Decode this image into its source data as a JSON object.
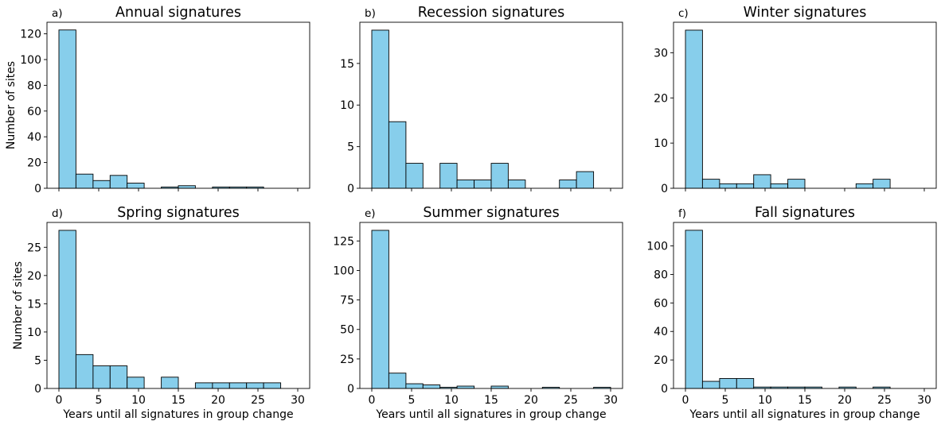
{
  "style": {
    "bar_color": "#87ceeb",
    "edge_color": "#000000"
  },
  "chart_data": [
    {
      "type": "bar",
      "panel_label": "a)",
      "title": "Annual signatures",
      "xlabel": "",
      "ylabel": "Number of sites",
      "xlim": [
        -1.5,
        31.5
      ],
      "ylim": [
        0,
        129
      ],
      "xticks": [
        0,
        5,
        10,
        15,
        20,
        25,
        30
      ],
      "yticks": [
        0,
        20,
        40,
        60,
        80,
        100,
        120
      ],
      "show_xtick_labels": false,
      "bin_edges": [
        0,
        2.14,
        4.29,
        6.43,
        8.57,
        10.71,
        12.86,
        15,
        17.14,
        19.29,
        21.43,
        23.57,
        25.71,
        27.86,
        30
      ],
      "values": [
        123,
        11,
        6,
        10,
        4,
        0,
        1,
        2,
        0,
        1,
        1,
        1,
        0,
        0
      ]
    },
    {
      "type": "bar",
      "panel_label": "b)",
      "title": "Recession signatures",
      "xlabel": "",
      "ylabel": "",
      "xlim": [
        -1.5,
        31.5
      ],
      "ylim": [
        0,
        19.95
      ],
      "xticks": [
        0,
        5,
        10,
        15,
        20,
        25,
        30
      ],
      "yticks": [
        0,
        5,
        10,
        15
      ],
      "show_xtick_labels": false,
      "bin_edges": [
        0,
        2.14,
        4.29,
        6.43,
        8.57,
        10.71,
        12.86,
        15,
        17.14,
        19.29,
        21.43,
        23.57,
        25.71,
        27.86,
        30
      ],
      "values": [
        19,
        8,
        3,
        0,
        3,
        1,
        1,
        3,
        1,
        0,
        0,
        1,
        2,
        0
      ]
    },
    {
      "type": "bar",
      "panel_label": "c)",
      "title": "Winter signatures",
      "xlabel": "",
      "ylabel": "",
      "xlim": [
        -1.5,
        31.5
      ],
      "ylim": [
        0,
        36.75
      ],
      "xticks": [
        0,
        5,
        10,
        15,
        20,
        25,
        30
      ],
      "yticks": [
        0,
        10,
        20,
        30
      ],
      "show_xtick_labels": false,
      "bin_edges": [
        0,
        2.14,
        4.29,
        6.43,
        8.57,
        10.71,
        12.86,
        15,
        17.14,
        19.29,
        21.43,
        23.57,
        25.71,
        27.86,
        30
      ],
      "values": [
        35,
        2,
        1,
        1,
        3,
        1,
        2,
        0,
        0,
        0,
        1,
        2,
        0,
        0
      ]
    },
    {
      "type": "bar",
      "panel_label": "d)",
      "title": "Spring signatures",
      "xlabel": "Years until all signatures in group change",
      "ylabel": "Number of sites",
      "xlim": [
        -1.5,
        31.5
      ],
      "ylim": [
        0,
        29.4
      ],
      "xticks": [
        0,
        5,
        10,
        15,
        20,
        25,
        30
      ],
      "yticks": [
        0,
        5,
        10,
        15,
        20,
        25
      ],
      "show_xtick_labels": true,
      "bin_edges": [
        0,
        2.14,
        4.29,
        6.43,
        8.57,
        10.71,
        12.86,
        15,
        17.14,
        19.29,
        21.43,
        23.57,
        25.71,
        27.86,
        30
      ],
      "values": [
        28,
        6,
        4,
        4,
        2,
        0,
        2,
        0,
        1,
        1,
        1,
        1,
        1,
        0
      ]
    },
    {
      "type": "bar",
      "panel_label": "e)",
      "title": "Summer signatures",
      "xlabel": "Years until all signatures in group change",
      "ylabel": "",
      "xlim": [
        -1.5,
        31.5
      ],
      "ylim": [
        0,
        140.7
      ],
      "xticks": [
        0,
        5,
        10,
        15,
        20,
        25,
        30
      ],
      "yticks": [
        0,
        25,
        50,
        75,
        100,
        125
      ],
      "show_xtick_labels": true,
      "bin_edges": [
        0,
        2.14,
        4.29,
        6.43,
        8.57,
        10.71,
        12.86,
        15,
        17.14,
        19.29,
        21.43,
        23.57,
        25.71,
        27.86,
        30
      ],
      "values": [
        134,
        13,
        4,
        3,
        1,
        2,
        0,
        2,
        0,
        0,
        1,
        0,
        0,
        1
      ]
    },
    {
      "type": "bar",
      "panel_label": "f)",
      "title": "Fall signatures",
      "xlabel": "Years until all signatures in group change",
      "ylabel": "",
      "xlim": [
        -1.5,
        31.5
      ],
      "ylim": [
        0,
        116.5
      ],
      "xticks": [
        0,
        5,
        10,
        15,
        20,
        25,
        30
      ],
      "yticks": [
        0,
        20,
        40,
        60,
        80,
        100
      ],
      "show_xtick_labels": true,
      "bin_edges": [
        0,
        2.14,
        4.29,
        6.43,
        8.57,
        10.71,
        12.86,
        15,
        17.14,
        19.29,
        21.43,
        23.57,
        25.71,
        27.86,
        30
      ],
      "values": [
        111,
        5,
        7,
        7,
        1,
        1,
        1,
        1,
        0,
        1,
        0,
        1,
        0,
        0
      ]
    }
  ]
}
